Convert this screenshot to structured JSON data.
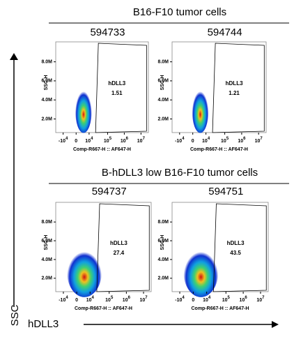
{
  "sections": [
    {
      "title": "B16-F10 tumor cells",
      "panels": [
        {
          "sample": "594733",
          "gate_label": "hDLL3",
          "gate_value": "1.51"
        },
        {
          "sample": "594744",
          "gate_label": "hDLL3",
          "gate_value": "1.21"
        }
      ]
    },
    {
      "title": "B-hDLL3 low B16-F10 tumor cells",
      "panels": [
        {
          "sample": "594737",
          "gate_label": "hDLL3",
          "gate_value": "27.4"
        },
        {
          "sample": "594751",
          "gate_label": "hDLL3",
          "gate_value": "43.5"
        }
      ]
    }
  ],
  "y_axis": {
    "label": "SSC-H",
    "ticks": [
      "8.0M",
      "6.0M",
      "4.0M",
      "2.0M"
    ]
  },
  "x_axis": {
    "label": "Comp-R667-H :: AF647-H",
    "ticks": [
      {
        "base": "-10",
        "exp": "4"
      },
      {
        "base": "0"
      },
      {
        "base": "10",
        "exp": "4"
      },
      {
        "base": "10",
        "exp": "5"
      },
      {
        "base": "10",
        "exp": "6"
      },
      {
        "base": "10",
        "exp": "7"
      }
    ]
  },
  "outer_axes": {
    "y": "SSC",
    "x": "hDLL3"
  }
}
